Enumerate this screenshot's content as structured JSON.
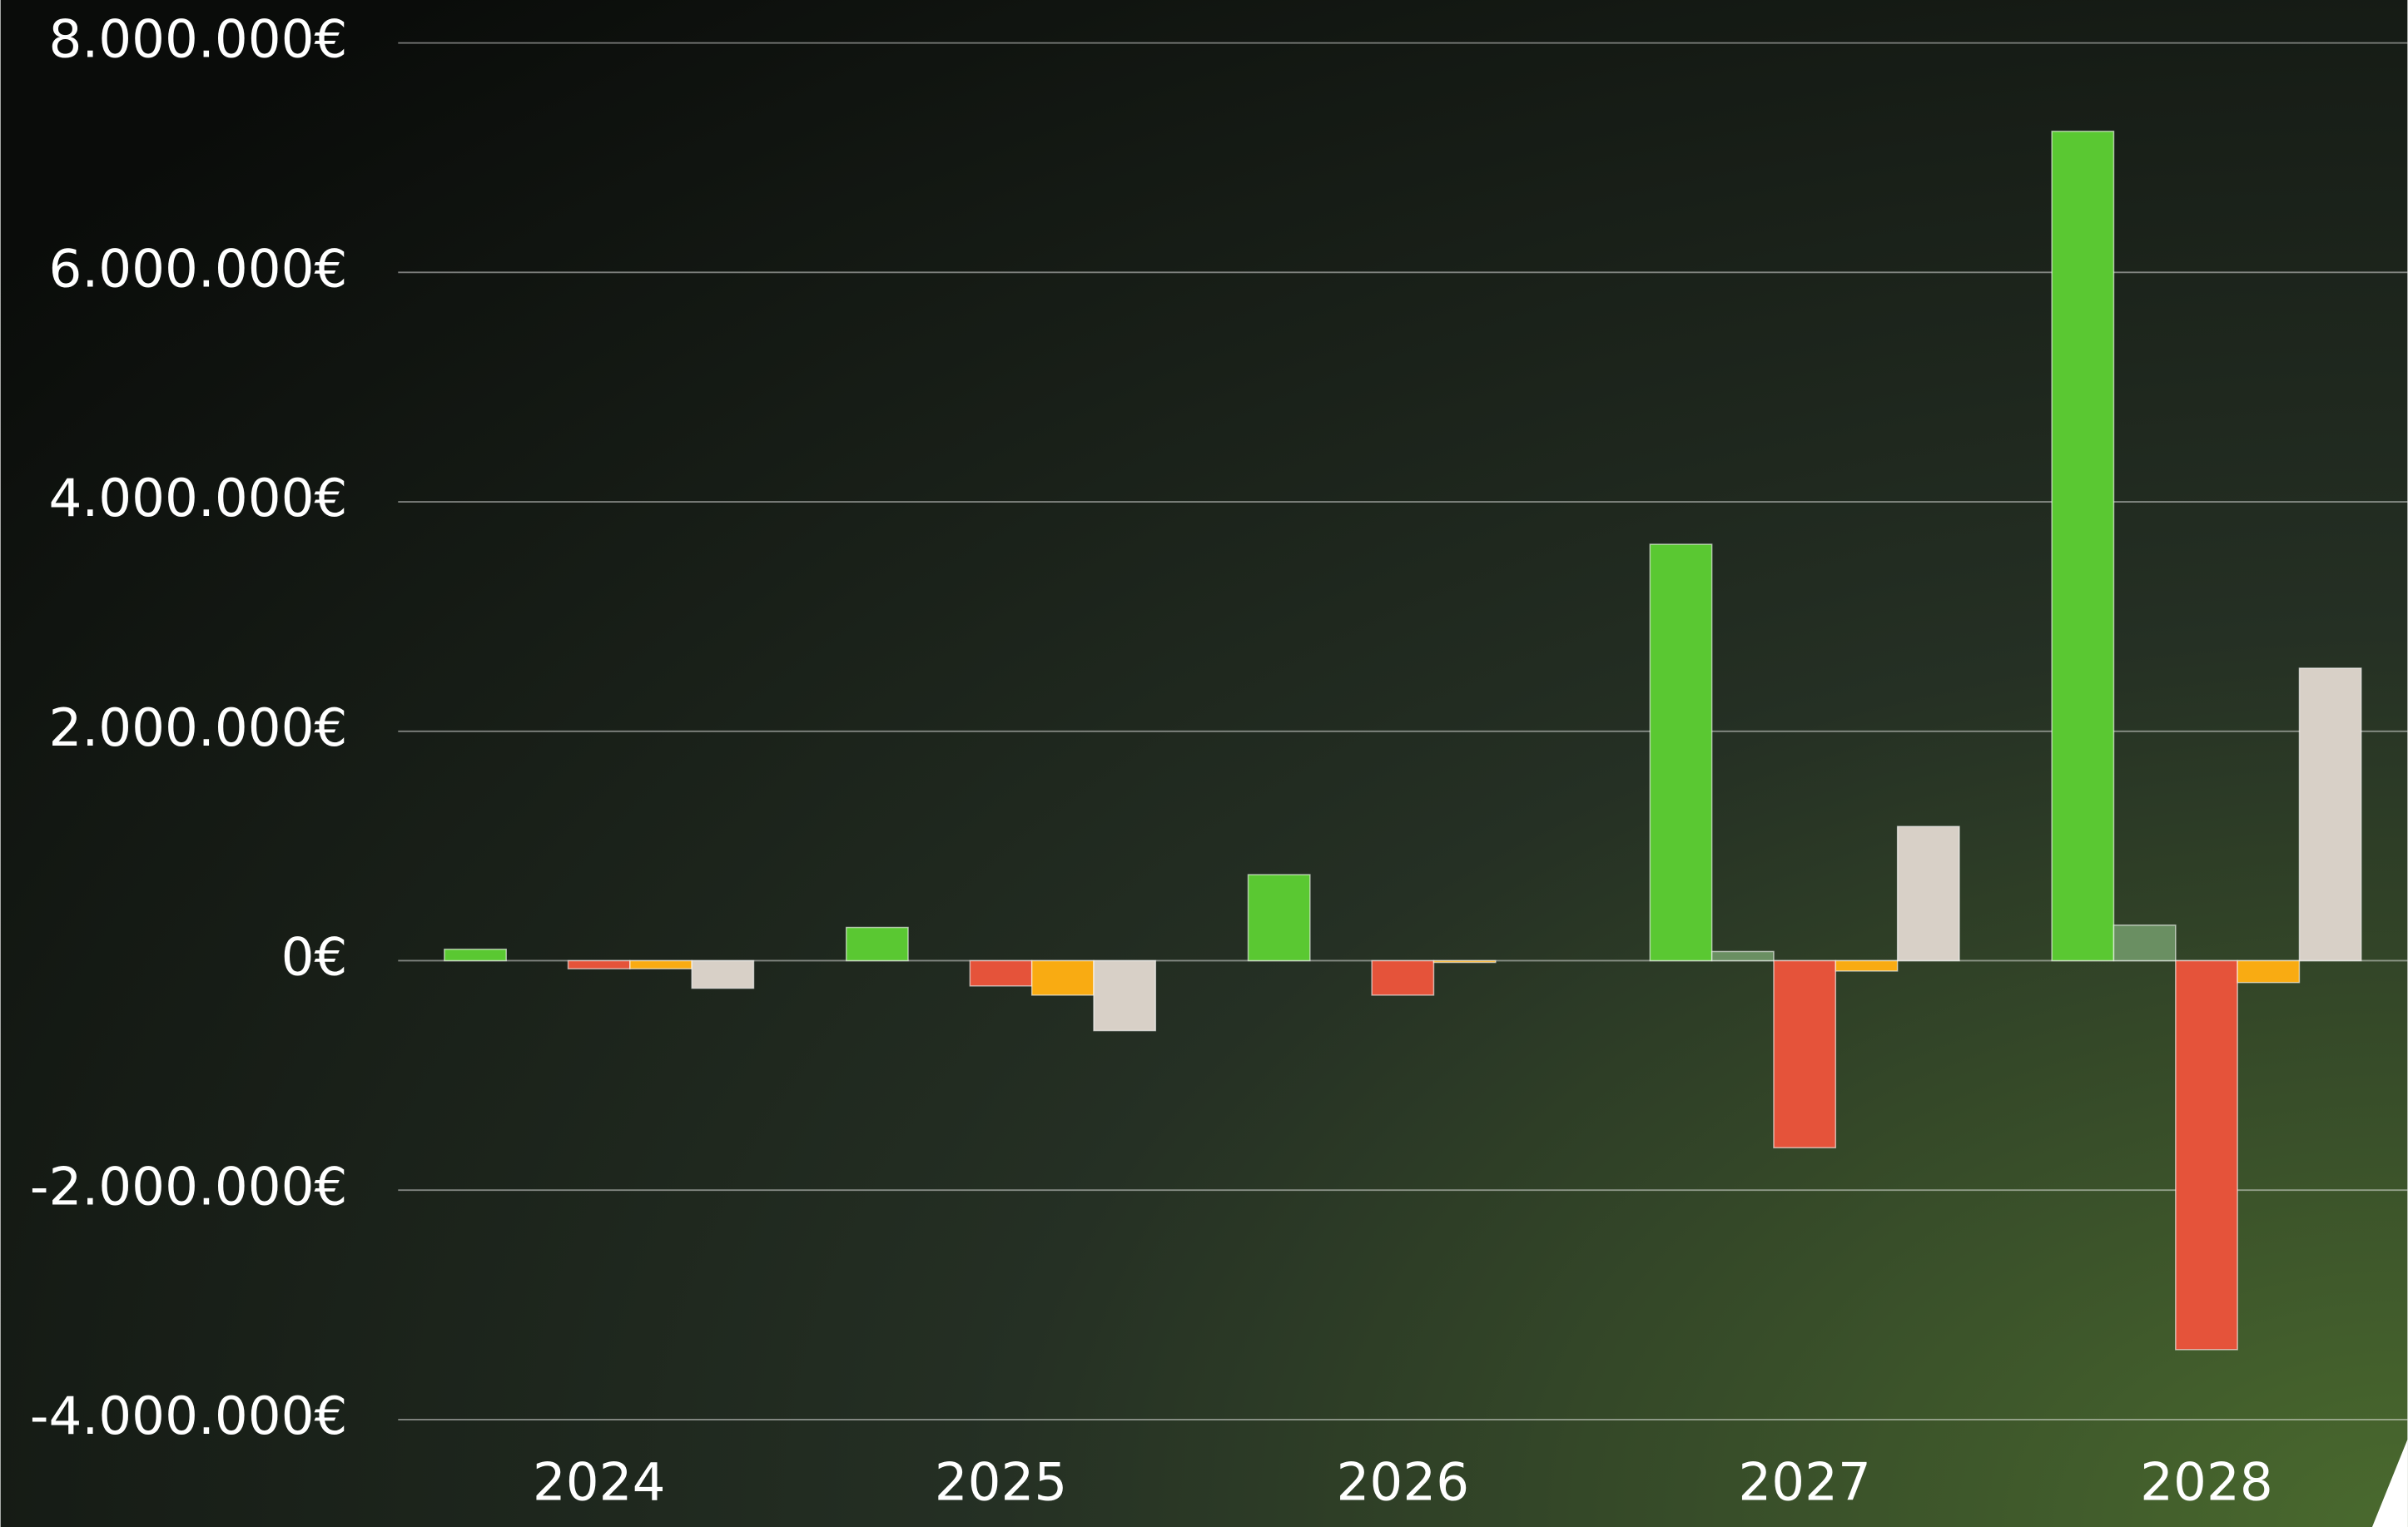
{
  "chart_data": {
    "type": "bar",
    "categories": [
      "2024",
      "2025",
      "2026",
      "2027",
      "2028"
    ],
    "series": [
      {
        "color": "#5ac832",
        "values": [
          100000,
          290000,
          750000,
          3630000,
          7230000
        ]
      },
      {
        "color": "#6a8f62",
        "values": [
          0,
          0,
          0,
          80000,
          310000
        ]
      },
      {
        "color": "#e5533a",
        "values": [
          -70000,
          -220000,
          -300000,
          -1630000,
          -3390000
        ]
      },
      {
        "color": "#f9ab12",
        "values": [
          -70000,
          -300000,
          -15000,
          -90000,
          -190000
        ]
      },
      {
        "color": "#d8d0c7",
        "values": [
          -240000,
          -610000,
          0,
          1170000,
          2550000
        ]
      }
    ],
    "ylim": [
      -4000000,
      8000000
    ],
    "yticks": [
      {
        "value": -4000000,
        "label": "-4.000.000€"
      },
      {
        "value": -2000000,
        "label": "-2.000.000€"
      },
      {
        "value": 0,
        "label": "0€"
      },
      {
        "value": 2000000,
        "label": "2.000.000€"
      },
      {
        "value": 4000000,
        "label": "4.000.000€"
      },
      {
        "value": 6000000,
        "label": "6.000.000€"
      },
      {
        "value": 8000000,
        "label": "8.000.000€"
      }
    ],
    "grid": true
  }
}
